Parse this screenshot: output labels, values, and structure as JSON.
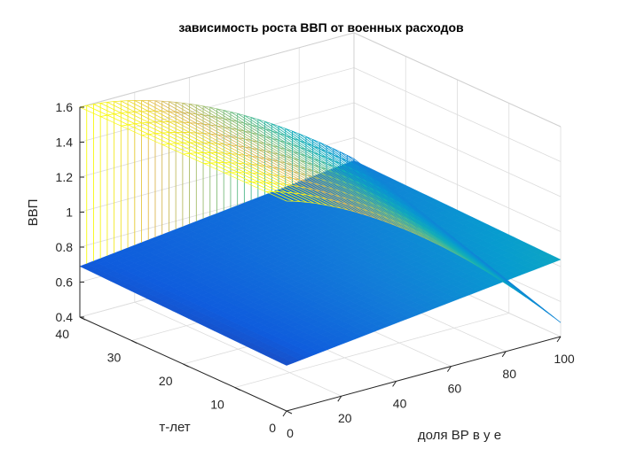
{
  "chart_data": {
    "type": "surface",
    "title": "зависимость роста ВВП от военных расходов",
    "xlabel": "доля ВР в у е",
    "ylabel": "т-лет",
    "zlabel": "ВВП",
    "xlim": [
      0,
      100
    ],
    "ylim": [
      0,
      40
    ],
    "zlim": [
      0.4,
      1.6
    ],
    "x_ticks": [
      0,
      20,
      40,
      60,
      80,
      100
    ],
    "y_ticks": [
      0,
      10,
      20,
      30,
      40
    ],
    "z_ticks": [
      0.4,
      0.6,
      0.8,
      1,
      1.2,
      1.4,
      1.6
    ],
    "z_tick_labels": [
      "0.4",
      "0.6",
      "0.8",
      "1",
      "1.2",
      "1.4",
      "1.6"
    ],
    "x_tick_labels": [
      "0",
      "20",
      "40",
      "60",
      "80",
      "100"
    ],
    "y_tick_labels": [
      "0",
      "10",
      "20",
      "30",
      "40"
    ],
    "grid": true,
    "box": true,
    "colormap": "parula",
    "view": {
      "azimuth": -37.5,
      "elevation": 30
    },
    "surface": {
      "x_range": [
        0,
        100
      ],
      "y_range": [
        0,
        40
      ],
      "x_steps": 40,
      "y_steps": 40,
      "description_points": [
        {
          "x": 0,
          "y": 40,
          "z": 0.65
        },
        {
          "x": 0,
          "y": 0,
          "z": 0.62
        },
        {
          "x": 100,
          "y": 0,
          "z": 0.8
        },
        {
          "x": 100,
          "y": 40,
          "z": 0.88
        },
        {
          "x": 0,
          "y": 40,
          "z": 0.65
        },
        {
          "x": 4,
          "y": 40,
          "z": 1.6
        }
      ]
    }
  }
}
